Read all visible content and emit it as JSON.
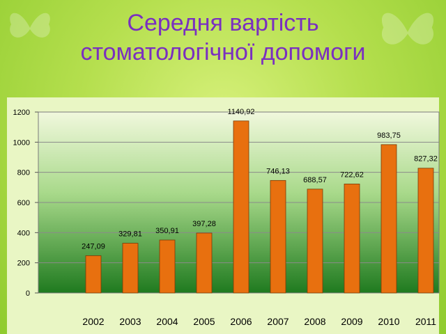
{
  "title": {
    "line1": "Середня вартість",
    "line2": "стоматологічної допомоги"
  },
  "colors": {
    "bar": "#e8700f",
    "bar_border": "#7a3a05",
    "title": "#7a2fc0",
    "plot_top": "#f1f8dd",
    "plot_bottom": "#1f7a1f"
  },
  "chart_data": {
    "type": "bar",
    "categories": [
      "2002",
      "2003",
      "2004",
      "2005",
      "2006",
      "2007",
      "2008",
      "2009",
      "2010",
      "2011"
    ],
    "values": [
      247.09,
      329.81,
      350.91,
      397.28,
      1140.92,
      746.13,
      688.57,
      722.62,
      983.75,
      827.32
    ],
    "data_labels": [
      "247,09",
      "329,81",
      "350,91",
      "397,28",
      "1140,92",
      "746,13",
      "688,57",
      "722,62",
      "983,75",
      "827,32"
    ],
    "yticks": [
      "0",
      "200",
      "400",
      "600",
      "800",
      "1000",
      "1200"
    ],
    "ylim": [
      0,
      1200
    ],
    "grid": true,
    "legend": "none"
  }
}
